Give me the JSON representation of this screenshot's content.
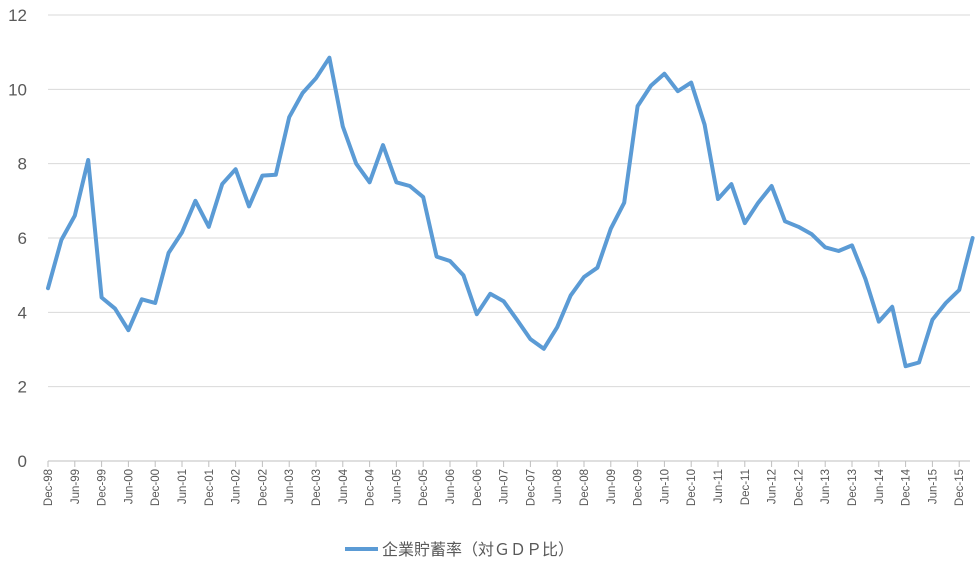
{
  "chart_data": {
    "type": "line",
    "title": "",
    "xlabel": "",
    "ylabel": "",
    "ylim": [
      0,
      12
    ],
    "yticks": [
      0,
      2,
      4,
      6,
      8,
      10,
      12
    ],
    "grid": "horizontal",
    "legend_position": "bottom",
    "line_color": "#5b9bd5",
    "x_tick_labels": [
      "Dec-98",
      "Jun-99",
      "Dec-99",
      "Jun-00",
      "Dec-00",
      "Jun-01",
      "Dec-01",
      "Jun-02",
      "Dec-02",
      "Jun-03",
      "Dec-03",
      "Jun-04",
      "Dec-04",
      "Jun-05",
      "Dec-05",
      "Jun-06",
      "Dec-06",
      "Jun-07",
      "Dec-07",
      "Jun-08",
      "Dec-08",
      "Jun-09",
      "Dec-09",
      "Jun-10",
      "Dec-10",
      "Jun-11",
      "Dec-11",
      "Jun-12",
      "Dec-12",
      "Jun-13",
      "Dec-13",
      "Jun-14",
      "Dec-14",
      "Jun-15",
      "Dec-15"
    ],
    "series": [
      {
        "name": "企業貯蓄率（対ＧＤＰ比）",
        "values": [
          4.65,
          5.95,
          6.6,
          8.1,
          4.4,
          4.1,
          3.52,
          4.35,
          4.25,
          5.6,
          6.15,
          7.0,
          6.3,
          7.45,
          7.85,
          6.85,
          7.68,
          7.7,
          9.25,
          9.9,
          10.3,
          10.85,
          9.0,
          8.0,
          7.5,
          8.5,
          7.5,
          7.4,
          7.1,
          5.5,
          5.38,
          5.0,
          3.95,
          4.5,
          4.3,
          3.8,
          3.28,
          3.02,
          3.6,
          4.45,
          4.95,
          5.2,
          6.25,
          6.95,
          9.55,
          10.1,
          10.42,
          9.95,
          10.18,
          9.05,
          7.05,
          7.45,
          6.4,
          6.95,
          7.4,
          6.45,
          6.3,
          6.1,
          5.75,
          5.65,
          5.8,
          4.9,
          3.75,
          4.15,
          2.55,
          2.65,
          3.8,
          4.25,
          4.6,
          6.0
        ]
      }
    ]
  }
}
